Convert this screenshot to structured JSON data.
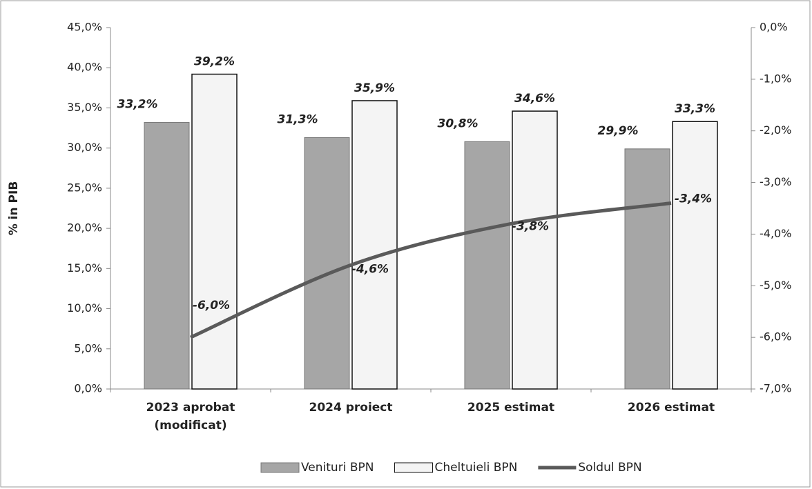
{
  "chart_data": {
    "type": "bar_line",
    "y_label": "% in PIB",
    "categories": [
      "2023 aprobat (modificat)",
      "2024 proiect",
      "2025 estimat",
      "2026 estimat"
    ],
    "series": [
      {
        "name": "Venituri BPN",
        "type": "bar",
        "color": "#a6a6a6",
        "values": [
          33.2,
          31.3,
          30.8,
          29.9
        ],
        "value_labels": [
          "33,2%",
          "31,3%",
          "30,8%",
          "29,9%"
        ]
      },
      {
        "name": "Cheltuieli BPN",
        "type": "bar",
        "color": "#f4f4f4",
        "values": [
          39.2,
          35.9,
          34.6,
          33.3
        ],
        "value_labels": [
          "39,2%",
          "35,9%",
          "34,6%",
          "33,3%"
        ]
      },
      {
        "name": "Soldul BPN",
        "type": "line",
        "axis": "y2",
        "color": "#5a5a5a",
        "values": [
          -6.0,
          -4.6,
          -3.8,
          -3.4
        ],
        "value_labels": [
          "-6,0%",
          "-4,6%",
          "-3,8%",
          "-3,4%"
        ]
      }
    ],
    "ylim": [
      0,
      45
    ],
    "yticks": [
      {
        "value": 0,
        "label": "0,0%"
      },
      {
        "value": 5,
        "label": "5,0%"
      },
      {
        "value": 10,
        "label": "10,0%"
      },
      {
        "value": 15,
        "label": "15,0%"
      },
      {
        "value": 20,
        "label": "20,0%"
      },
      {
        "value": 25,
        "label": "25,0%"
      },
      {
        "value": 30,
        "label": "30,0%"
      },
      {
        "value": 35,
        "label": "35,0%"
      },
      {
        "value": 40,
        "label": "40,0%"
      },
      {
        "value": 45,
        "label": "45,0%"
      }
    ],
    "y2lim": [
      -7,
      0
    ],
    "y2ticks": [
      {
        "value": -7,
        "label": "-7,0%"
      },
      {
        "value": -6,
        "label": "-6,0%"
      },
      {
        "value": -5,
        "label": "-5,0%"
      },
      {
        "value": -4,
        "label": "-4,0%"
      },
      {
        "value": -3,
        "label": "-3,0%"
      },
      {
        "value": -2,
        "label": "-2,0%"
      },
      {
        "value": -1,
        "label": "-1,0%"
      },
      {
        "value": 0,
        "label": "0,0%"
      }
    ],
    "legend": "bottom"
  }
}
